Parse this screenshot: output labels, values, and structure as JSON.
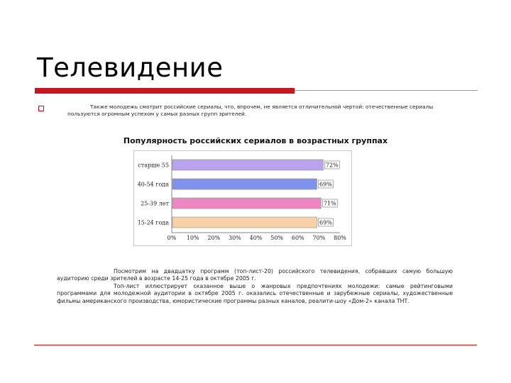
{
  "slide": {
    "title": "Телевидение",
    "intro": "Также молодежь смотрит российские сериалы, что, впрочем, не является отличительной чертой: отечественные сериалы пользуются огромным успехом у самых разных групп зрителей."
  },
  "chart_data": {
    "type": "bar",
    "orientation": "horizontal",
    "title": "Популярность российских сериалов в возрастных группах",
    "categories": [
      "старше 55",
      "40-54 года",
      "25-39 лет",
      "15-24 года"
    ],
    "values": [
      72,
      69,
      71,
      69
    ],
    "value_labels": [
      "72%",
      "69%",
      "71%",
      "69%"
    ],
    "colors": [
      "#b9a3ee",
      "#7f93ee",
      "#ee86c4",
      "#f9d1a6"
    ],
    "xlim": [
      0,
      80
    ],
    "ticks": [
      "0%",
      "10%",
      "20%",
      "30%",
      "40%",
      "50%",
      "60%",
      "70%",
      "80%"
    ],
    "legend": false
  },
  "body": {
    "paragraph1": "Посмотрим на двадцатку программ (топ-лист-20) российского телевидения, собравших самую большую аудиторию среди зрителей в возрасте 14-25 года в октябре 2005 г.",
    "paragraph2": "Топ-лист иллюстрирует сказанное выше о жанровых предпочтениях молодежи: самые рейтинговыми программами для молодежной аудитории в октябре 2005 г. оказались отечественные и зарубежные сериалы, художественные фильмы американского производства, юмористические программы разных каналов, реалити-шоу «Дом-2» канала ТНТ."
  }
}
